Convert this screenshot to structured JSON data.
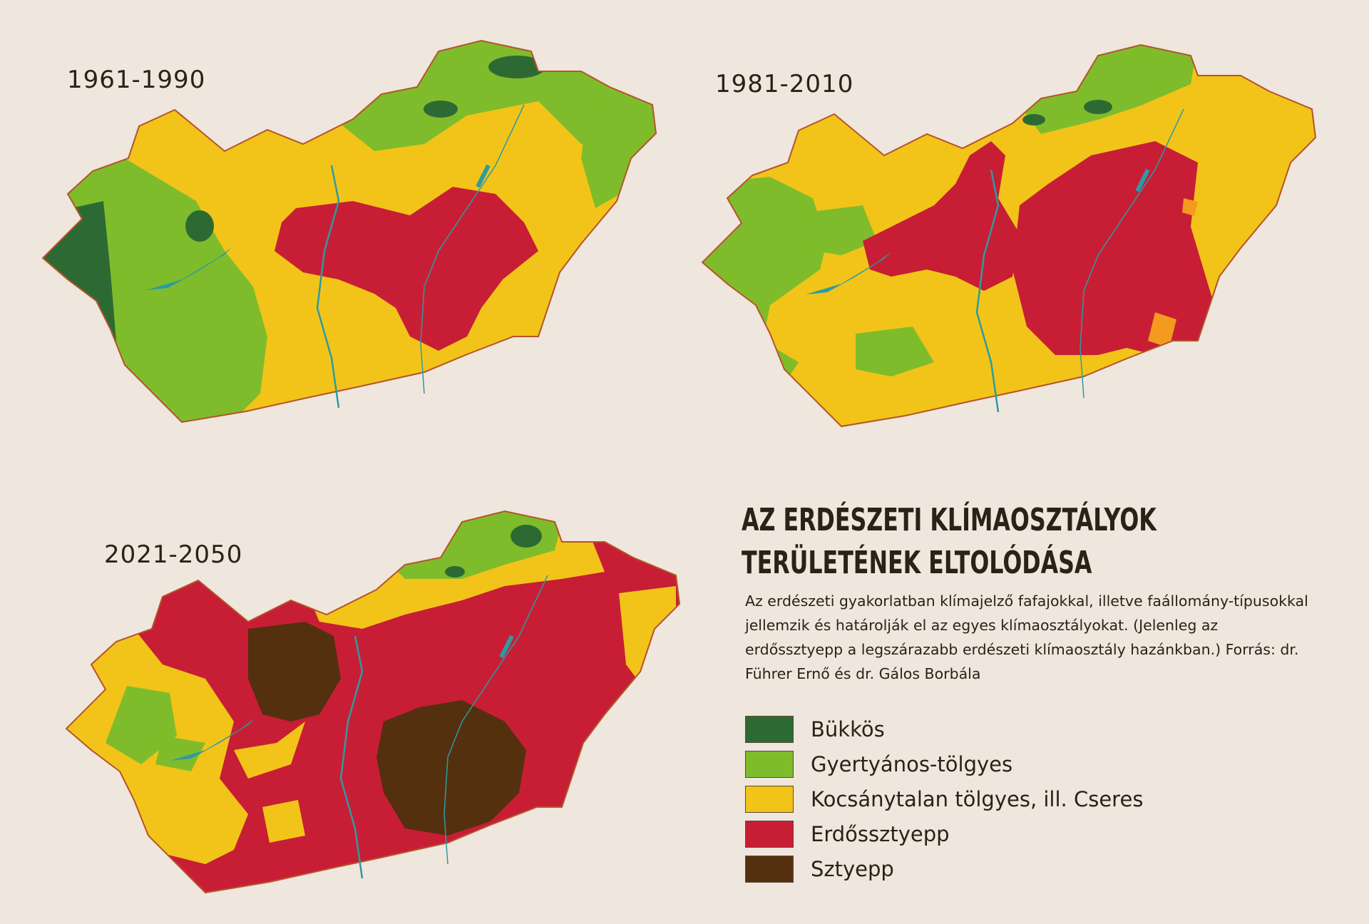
{
  "maps": [
    {
      "period": "1961-1990"
    },
    {
      "period": "1981-2010"
    },
    {
      "period": "2021-2050"
    }
  ],
  "title_line1": "AZ ERDÉSZETI KLÍMAOSZTÁLYOK",
  "title_line2": "TERÜLETÉNEK ELTOLÓDÁSA",
  "description": "Az erdészeti gyakorlatban klímajelző fafajokkal, illetve faállomány-típusokkal jellemzik és határolják el az egyes klímaosztályokat. (Jelenleg az erdőssztyepp a legszárazabb erdészeti klímaosztály hazánkban.) Forrás: dr. Führer Ernő és dr. Gálos Borbála",
  "legend": [
    {
      "label": "Bükkös",
      "color": "#2d6a33"
    },
    {
      "label": "Gyertyános-tölgyes",
      "color": "#7fbc2b"
    },
    {
      "label": "Kocsánytalan tölgyes, ill. Cseres",
      "color": "#f2c419"
    },
    {
      "label": "Erdőssztyepp",
      "color": "#c71e35"
    },
    {
      "label": "Sztyepp",
      "color": "#54300f"
    }
  ],
  "colors": {
    "background": "#efe6dd",
    "water": "#2e9aa1",
    "border": "#b5542a",
    "bukkos": "#2d6a33",
    "gyertyanos": "#7fbc2b",
    "kocsanytalan": "#f2c419",
    "erdossztyepp": "#c71e35",
    "sztyepp": "#54300f",
    "orange_patch": "#f39a1f"
  }
}
